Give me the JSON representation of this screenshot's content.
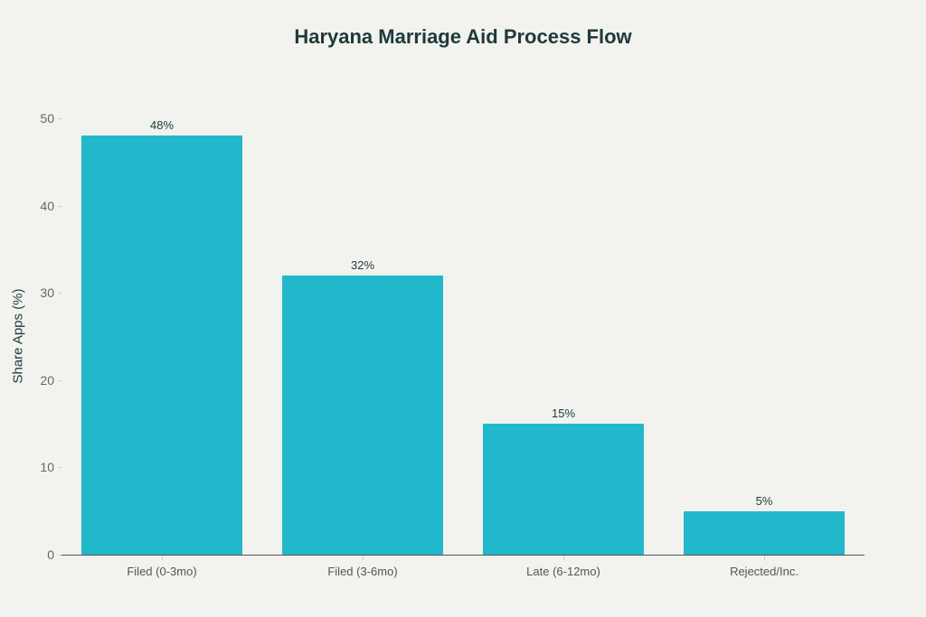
{
  "chart_data": {
    "type": "bar",
    "title": "Haryana Marriage Aid Process Flow",
    "xlabel": "",
    "ylabel": "Share Apps (%)",
    "categories": [
      "Filed (0-3mo)",
      "Filed (3-6mo)",
      "Late (6-12mo)",
      "Rejected/Inc."
    ],
    "values": [
      48,
      32,
      15,
      5
    ],
    "value_labels": [
      "48%",
      "32%",
      "15%",
      "5%"
    ],
    "ylim": [
      0,
      50
    ],
    "yticks": [
      0,
      10,
      20,
      30,
      40,
      50
    ],
    "grid": false,
    "legend": null,
    "bar_color": "#21b8cb"
  }
}
